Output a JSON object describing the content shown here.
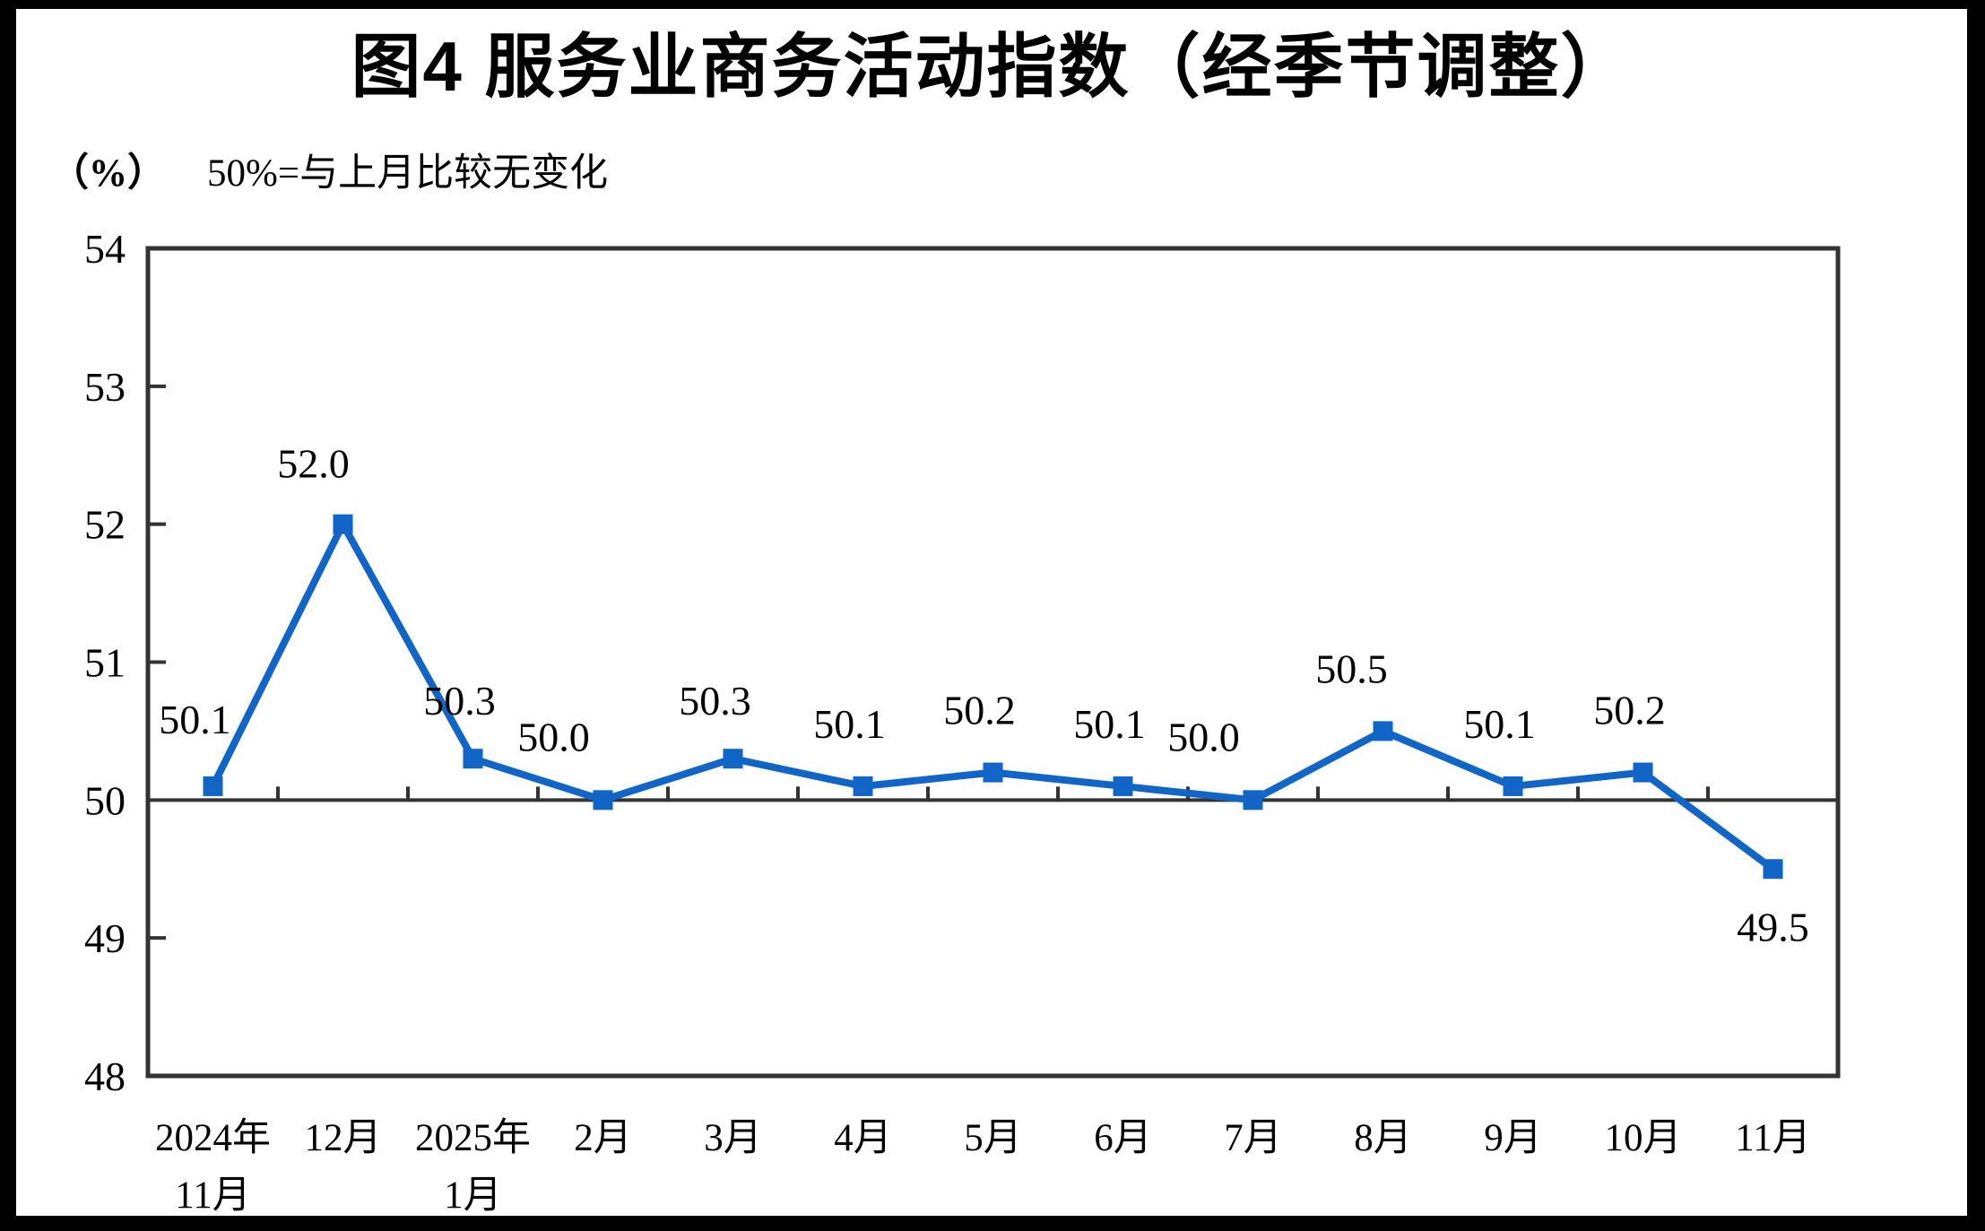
{
  "page": {
    "title": "图4  服务业商务活动指数（经季节调整）",
    "unit_label": "（%）",
    "reference_note": "50%=与上月比较无变化"
  },
  "chart_data": {
    "type": "line",
    "title": "图4 服务业商务活动指数（经季节调整）",
    "unit": "%",
    "reference_note": "50%=与上月比较无变化",
    "categories": [
      "2024年11月",
      "12月",
      "2025年1月",
      "2月",
      "3月",
      "4月",
      "5月",
      "6月",
      "7月",
      "8月",
      "9月",
      "10月",
      "11月"
    ],
    "x_tick_lines": [
      [
        "2024年",
        "11月"
      ],
      [
        "12月"
      ],
      [
        "2025年",
        "1月"
      ],
      [
        "2月"
      ],
      [
        "3月"
      ],
      [
        "4月"
      ],
      [
        "5月"
      ],
      [
        "6月"
      ],
      [
        "7月"
      ],
      [
        "8月"
      ],
      [
        "9月"
      ],
      [
        "10月"
      ],
      [
        "11月"
      ]
    ],
    "series": [
      {
        "name": "服务业商务活动指数",
        "values": [
          50.1,
          52.0,
          50.3,
          50.0,
          50.3,
          50.1,
          50.2,
          50.1,
          50.0,
          50.5,
          50.1,
          50.2,
          49.5
        ]
      }
    ],
    "data_labels": [
      "50.1",
      "52.0",
      "50.3",
      "50.0",
      "50.3",
      "50.1",
      "50.2",
      "50.1",
      "50.0",
      "50.5",
      "50.1",
      "50.2",
      "49.5"
    ],
    "ylim": [
      48,
      54
    ],
    "yticks": [
      48,
      49,
      50,
      51,
      52,
      53,
      54
    ],
    "reference_line": 50,
    "grid": false,
    "legend": "none",
    "line_color": "#1065C6",
    "marker": "square",
    "axis_color": "#333333",
    "text_color": "#000000"
  }
}
